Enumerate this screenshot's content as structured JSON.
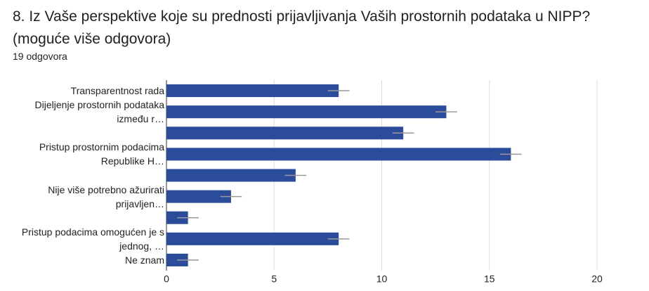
{
  "chart_data": {
    "type": "bar",
    "orientation": "horizontal",
    "title": "8. Iz Vaše perspektive koje su prednosti prijavljivanja Vaših prostornih podataka u NIPP? (moguće više odgovora)",
    "subtitle": "19 odgovora",
    "categories": [
      "Transparentnost rada",
      "Dijeljenje prostornih podataka između r…",
      null,
      "Pristup prostornim podacima Republike H…",
      null,
      "Nije više potrebno ažurirati prijavljen…",
      null,
      "Pristup podacima omogućen je s jednog, …",
      "Ne znam"
    ],
    "values": [
      8,
      13,
      11,
      16,
      6,
      3,
      1,
      8,
      1
    ],
    "errors": [
      0.5,
      0.5,
      0.5,
      0.5,
      0.5,
      0.5,
      0.5,
      0.5,
      0.5
    ],
    "color": "#2b4c9b",
    "xlim": [
      0,
      20
    ],
    "xticks": [
      0,
      5,
      10,
      15,
      20
    ],
    "grid": true
  }
}
